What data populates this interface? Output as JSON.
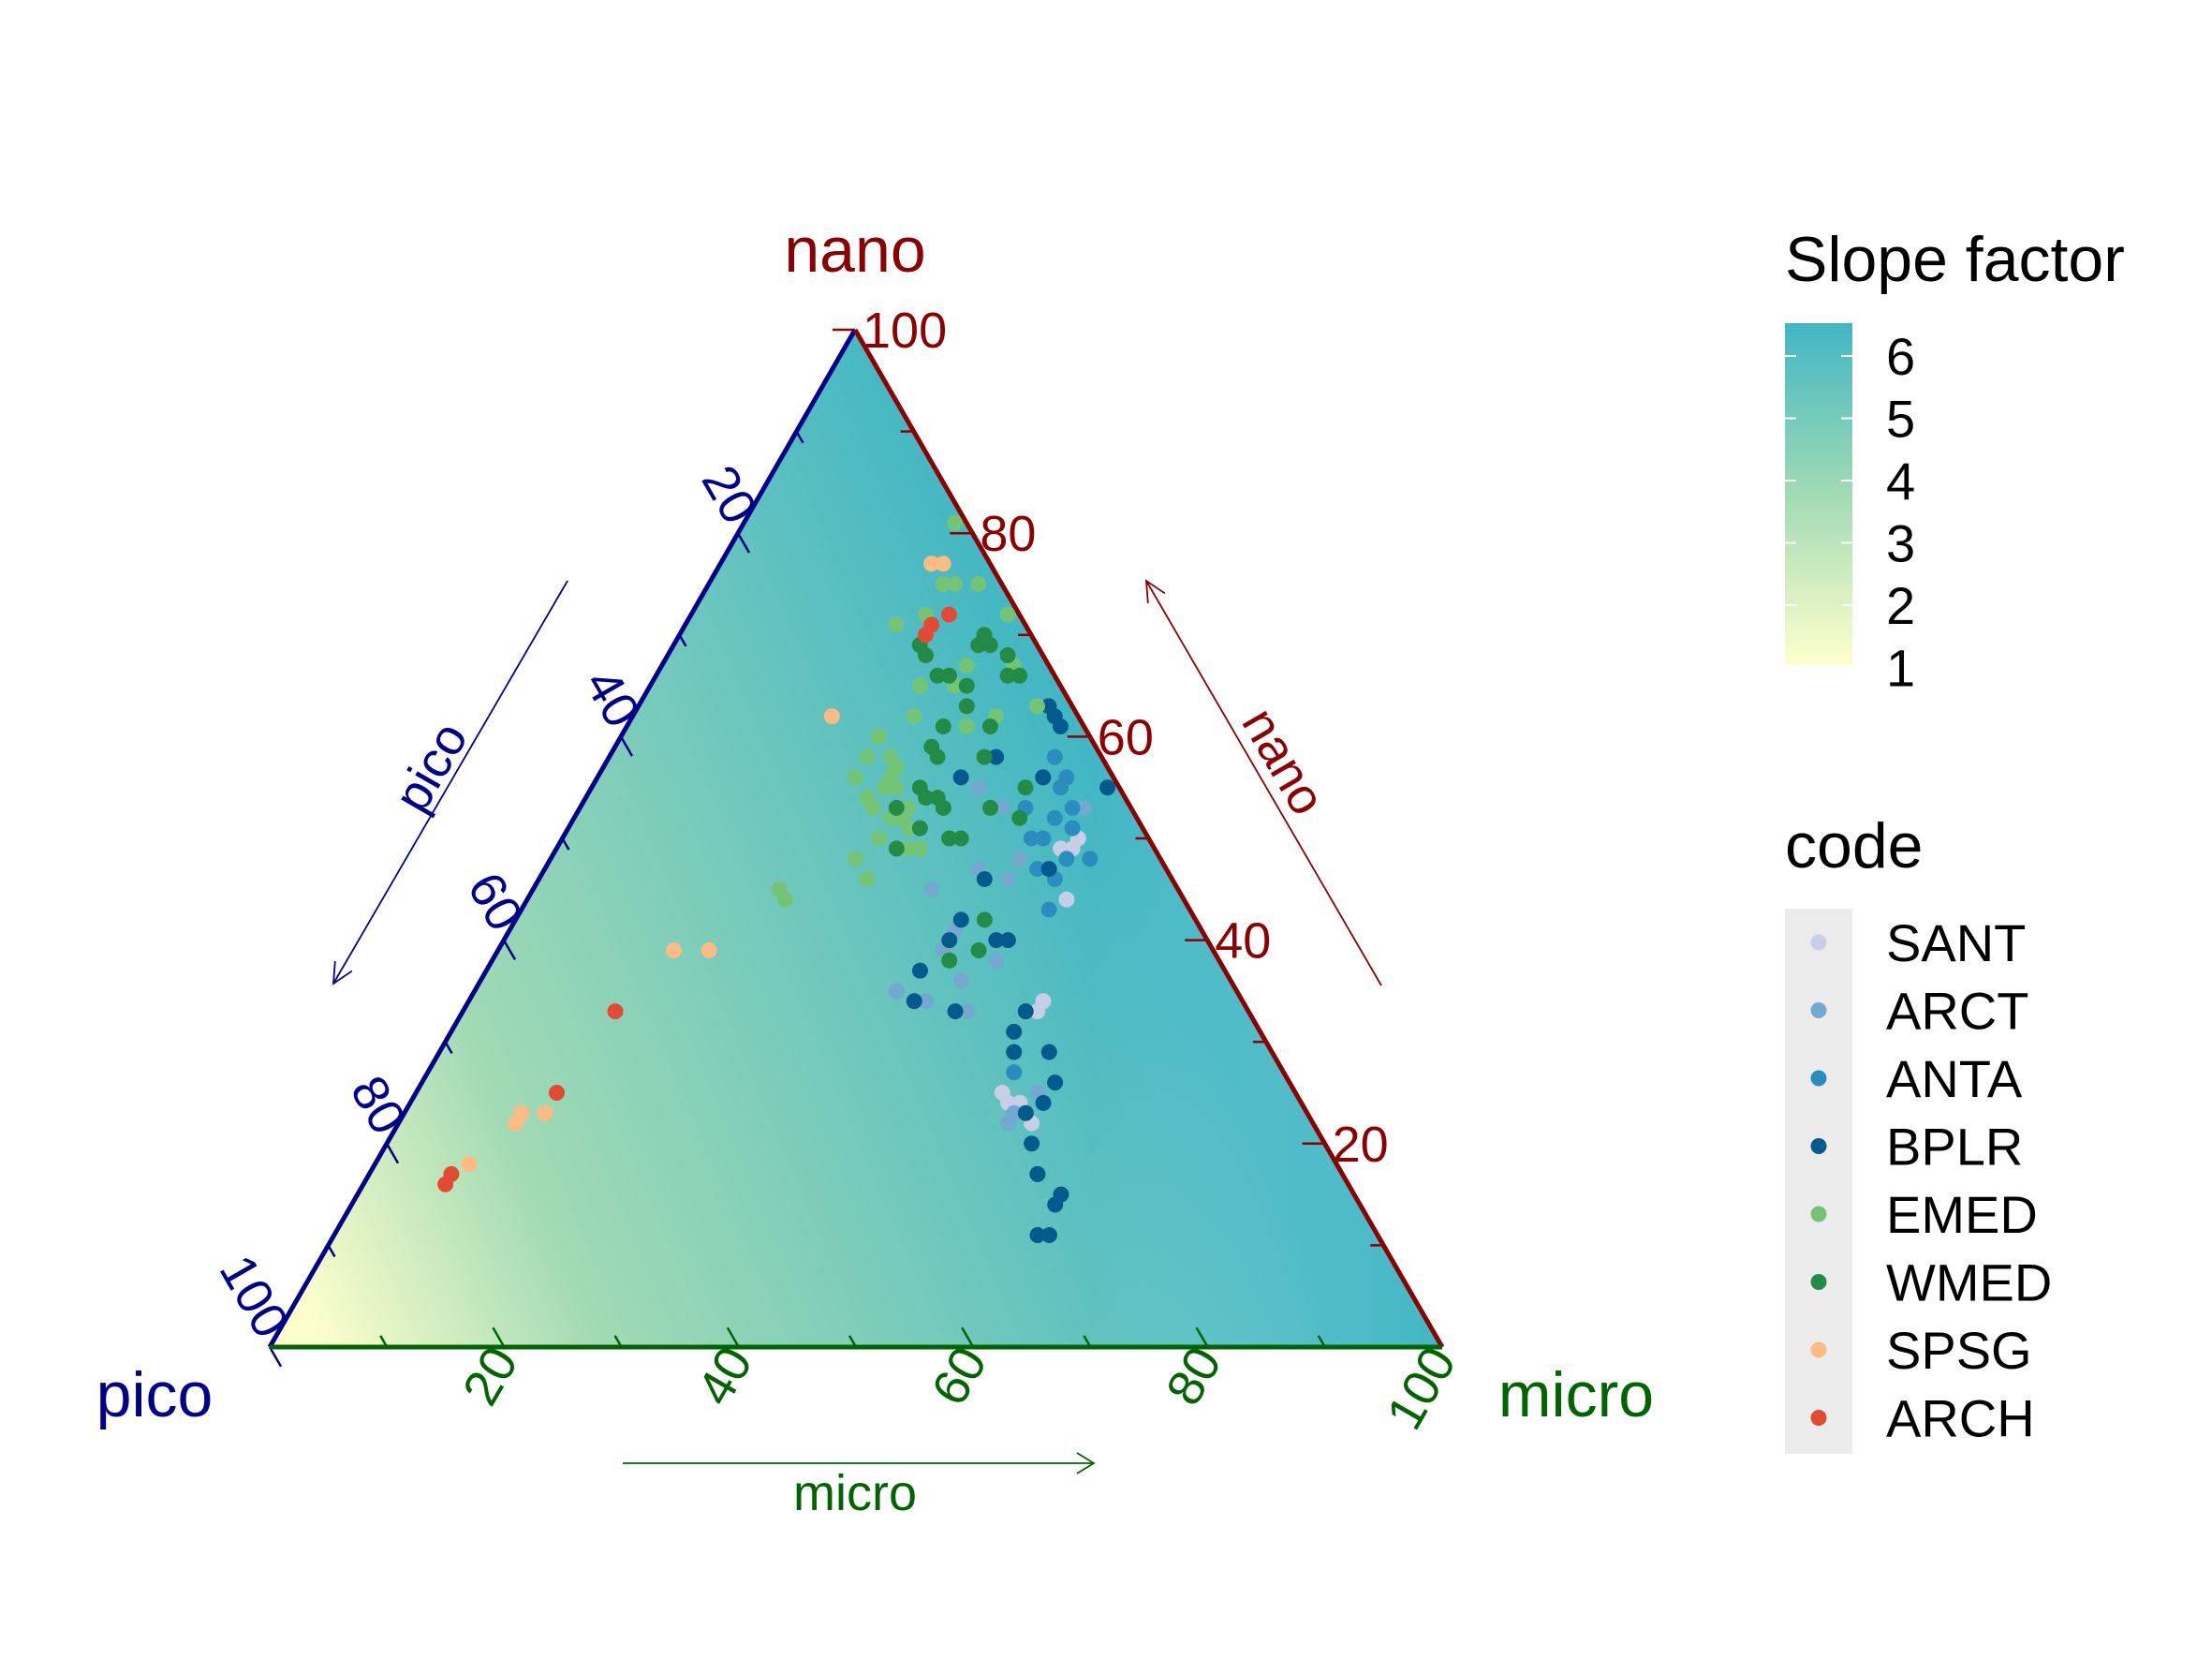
{
  "chart_data": {
    "type": "scatter",
    "subtype": "ternary",
    "axes": {
      "nano": {
        "label": "nano",
        "color": "#8B0000",
        "ticks": [
          "20",
          "40",
          "60",
          "80",
          "100"
        ],
        "arrow_label": "nano"
      },
      "pico": {
        "label": "pico",
        "color": "#00008B",
        "ticks": [
          "20",
          "40",
          "60",
          "80",
          "100"
        ],
        "arrow_label": "pico"
      },
      "micro": {
        "label": "micro",
        "color": "#006400",
        "ticks": [
          "20",
          "40",
          "60",
          "80",
          "100"
        ],
        "arrow_label": "micro"
      }
    },
    "fill_legend": {
      "title": "Slope factor",
      "ticks": [
        "6",
        "5",
        "4",
        "3",
        "2",
        "1"
      ],
      "low_color": "#FFFFCC",
      "mid_color": "#A1DAB4",
      "high_color": "#41B6C4"
    },
    "legend": {
      "title": "code",
      "entries": [
        {
          "name": "SANT",
          "color": "#C6CFE6"
        },
        {
          "name": "ARCT",
          "color": "#74A9CF"
        },
        {
          "name": "ANTA",
          "color": "#2B8CBE"
        },
        {
          "name": "BPLR",
          "color": "#045A8D"
        },
        {
          "name": "EMED",
          "color": "#74C476"
        },
        {
          "name": "WMED",
          "color": "#238B45"
        },
        {
          "name": "SPSG",
          "color": "#FDBB84"
        },
        {
          "name": "ARCH",
          "color": "#E34A33"
        }
      ]
    },
    "series": [
      {
        "name": "SANT",
        "points": [
          [
            42,
            53,
            5
          ],
          [
            44,
            50,
            6
          ],
          [
            44,
            49,
            7
          ],
          [
            43,
            49,
            8
          ],
          [
            40,
            50,
            10
          ],
          [
            42,
            47,
            11
          ],
          [
            46,
            44,
            10
          ],
          [
            45,
            43,
            12
          ],
          [
            49,
            34,
            17
          ],
          [
            49,
            33,
            18
          ],
          [
            51,
            24,
            25
          ],
          [
            52,
            24,
            24
          ],
          [
            50,
            25,
            25
          ],
          [
            54,
            22,
            24
          ]
        ]
      },
      {
        "name": "ARCT",
        "points": [
          [
            43,
            53,
            4
          ],
          [
            40,
            55,
            5
          ],
          [
            36,
            53,
            11
          ],
          [
            33,
            55,
            12
          ],
          [
            40,
            46,
            14
          ],
          [
            40,
            42,
            18
          ],
          [
            40,
            48,
            12
          ],
          [
            34,
            45,
            21
          ],
          [
            38,
            41,
            21
          ],
          [
            38,
            39,
            23
          ],
          [
            39,
            34,
            27
          ],
          [
            43,
            33,
            24
          ],
          [
            41,
            36,
            23
          ],
          [
            43,
            38,
            19
          ],
          [
            36,
            35,
            29
          ],
          [
            52,
            23,
            25
          ],
          [
            52,
            22,
            26
          ],
          [
            53,
            25,
            22
          ],
          [
            37,
            47,
            16
          ]
        ]
      },
      {
        "name": "ANTA",
        "points": [
          [
            40,
            55,
            5
          ],
          [
            43,
            51,
            6
          ],
          [
            42,
            53,
            5
          ],
          [
            46,
            48,
            6
          ],
          [
            40,
            56,
            4
          ],
          [
            38,
            58,
            4
          ],
          [
            41,
            52,
            7
          ],
          [
            44,
            46,
            10
          ],
          [
            44,
            48,
            8
          ],
          [
            43,
            47,
            10
          ],
          [
            42,
            47,
            11
          ],
          [
            40,
            50,
            10
          ],
          [
            41,
            50,
            9
          ],
          [
            38,
            53,
            9
          ],
          [
            38,
            56,
            6
          ],
          [
            45,
            43,
            12
          ],
          [
            50,
            27,
            23
          ]
        ]
      },
      {
        "name": "BPLR",
        "points": [
          [
            44,
            55,
            1
          ],
          [
            37,
            61,
            2
          ],
          [
            36,
            62,
            2
          ],
          [
            35,
            63,
            2
          ],
          [
            38,
            56,
            6
          ],
          [
            33,
            58,
            9
          ],
          [
            43,
            47,
            10
          ],
          [
            38,
            46,
            16
          ],
          [
            38,
            42,
            20
          ],
          [
            38,
            40,
            22
          ],
          [
            42,
            40,
            18
          ],
          [
            43,
            40,
            17
          ],
          [
            37,
            37,
            26
          ],
          [
            38,
            34,
            28
          ],
          [
            42,
            33,
            25
          ],
          [
            48,
            31,
            21
          ],
          [
            48,
            33,
            19
          ],
          [
            52,
            29,
            19
          ],
          [
            54,
            26,
            20
          ],
          [
            54,
            24,
            22
          ],
          [
            53,
            23,
            24
          ],
          [
            55,
            20,
            25
          ],
          [
            57,
            17,
            26
          ],
          [
            57,
            17,
            26
          ],
          [
            60,
            15,
            25
          ],
          [
            60,
            14,
            26
          ],
          [
            61,
            11,
            28
          ],
          [
            60,
            11,
            29
          ],
          [
            49,
            29,
            22
          ],
          [
            31,
            56,
            13
          ]
        ]
      },
      {
        "name": "EMED",
        "points": [
          [
            18,
            81,
            1
          ],
          [
            20,
            75,
            5
          ],
          [
            21,
            75,
            4
          ],
          [
            23,
            75,
            2
          ],
          [
            20,
            72,
            8
          ],
          [
            18,
            71,
            11
          ],
          [
            26,
            67,
            7
          ],
          [
            23,
            65,
            12
          ],
          [
            26,
            65,
            9
          ],
          [
            31,
            62,
            7
          ],
          [
            29,
            61,
            10
          ],
          [
            22,
            60,
            18
          ],
          [
            22,
            58,
            20
          ],
          [
            22,
            56,
            22
          ],
          [
            25,
            56,
            19
          ],
          [
            26,
            55,
            19
          ],
          [
            24,
            54,
            22
          ],
          [
            28,
            53,
            19
          ],
          [
            25,
            53,
            22
          ],
          [
            27,
            52,
            21
          ],
          [
            28,
            52,
            20
          ],
          [
            29,
            51,
            20
          ],
          [
            28,
            46,
            26
          ],
          [
            30,
            49,
            21
          ],
          [
            36,
            65,
            -1
          ],
          [
            24,
            78,
            -2
          ],
          [
            26,
            76,
            -2
          ],
          [
            27,
            74,
            -1
          ],
          [
            34,
            63,
            3
          ],
          [
            30,
            67,
            3
          ],
          [
            27,
            72,
            1
          ],
          [
            24,
            62,
            14
          ],
          [
            24,
            58,
            18
          ],
          [
            25,
            57,
            18
          ],
          [
            21,
            45,
            34
          ],
          [
            22,
            44,
            34
          ],
          [
            26,
            48,
            26
          ],
          [
            27,
            50,
            23
          ],
          [
            31,
            49,
            20
          ],
          [
            25,
            55,
            20
          ]
        ]
      },
      {
        "name": "WMED",
        "points": [
          [
            23,
            87,
            -10
          ],
          [
            21,
            81,
            -2
          ],
          [
            21,
            69,
            10
          ],
          [
            22,
            68,
            10
          ],
          [
            24,
            66,
            10
          ],
          [
            25,
            66,
            9
          ],
          [
            27,
            65,
            8
          ],
          [
            28,
            63,
            9
          ],
          [
            27,
            61,
            12
          ],
          [
            28,
            58,
            14
          ],
          [
            27,
            59,
            14
          ],
          [
            29,
            54,
            17
          ],
          [
            31,
            53,
            16
          ],
          [
            33,
            50,
            17
          ],
          [
            35,
            53,
            12
          ],
          [
            37,
            55,
            8
          ],
          [
            38,
            52,
            10
          ],
          [
            40,
            42,
            18
          ],
          [
            41,
            39,
            20
          ],
          [
            39,
            38,
            23
          ],
          [
            31,
            66,
            3
          ],
          [
            29,
            68,
            3
          ],
          [
            34,
            50,
            16
          ],
          [
            32,
            58,
            10
          ],
          [
            29,
            49,
            22
          ],
          [
            30,
            51,
            19
          ],
          [
            30,
            54,
            16
          ],
          [
            27,
            53,
            20
          ],
          [
            28,
            55,
            17
          ],
          [
            30,
            66,
            4
          ],
          [
            26,
            70,
            4
          ],
          [
            26,
            69,
            5
          ],
          [
            27,
            69,
            4
          ],
          [
            31,
            61,
            8
          ]
        ]
      },
      {
        "name": "SPSG",
        "points": [
          [
            16,
            93,
            -9
          ],
          [
            18,
            77,
            5
          ],
          [
            19,
            77,
            4
          ],
          [
            17,
            62,
            21
          ],
          [
            15,
            39,
            46
          ],
          [
            18,
            39,
            43
          ],
          [
            10,
            23,
            67
          ],
          [
            10,
            23,
            67
          ],
          [
            10,
            22,
            68
          ],
          [
            12,
            23,
            65
          ],
          [
            8,
            18,
            74
          ]
        ]
      },
      {
        "name": "ARCH",
        "points": [
          [
            21,
            71,
            8
          ],
          [
            22,
            72,
            6
          ],
          [
            21,
            70,
            9
          ],
          [
            12,
            25,
            63
          ],
          [
            7,
            17,
            76
          ],
          [
            7,
            16,
            77
          ],
          [
            13,
            33,
            54
          ]
        ]
      }
    ]
  }
}
